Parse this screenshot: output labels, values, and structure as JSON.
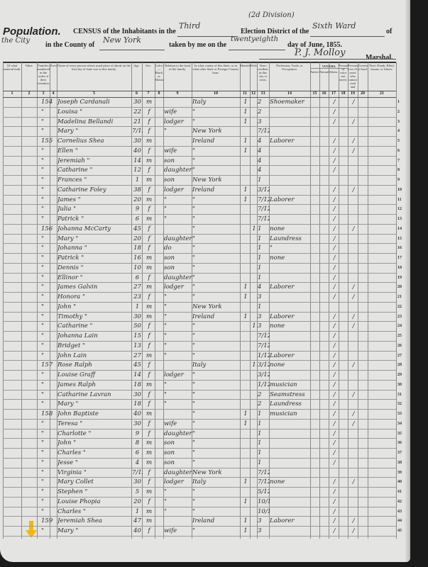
{
  "header": {
    "title": "Population.",
    "census_prefix": "CENSUS of the Inhabitants in the",
    "district_value": "Third",
    "division_note": "(2d Division)",
    "election_district_label": "Election District of the",
    "ward_value": "Sixth Ward",
    "of_label": "of",
    "city_value": "the City",
    "county_label": "in the County of",
    "county_value": "New York",
    "taken_label": "taken by me on the",
    "day_value": "twentyeighth",
    "date_suffix": "day of June, 1855.",
    "marshal_value": "P. J. Molloy",
    "marshal_label": "Marshal."
  },
  "columns": [
    {
      "num": "1",
      "label": "Of what material built."
    },
    {
      "num": "2",
      "label": "Value."
    },
    {
      "num": "3",
      "label": "Families numbered in the order of their visitation."
    },
    {
      "num": "4",
      "label": "Dwellings."
    },
    {
      "num": "5",
      "label": "Name of every person whose usual place of abode on the first day of June was in this family."
    },
    {
      "num": "6",
      "label": "Age."
    },
    {
      "num": "7",
      "label": "Sex."
    },
    {
      "num": "8",
      "label": "Color—Black or Mulatto."
    },
    {
      "num": "9",
      "label": "Relation to the head of the family."
    },
    {
      "num": "10",
      "label": "In what county of this State, or in what other State or Foreign Country born."
    },
    {
      "num": "11",
      "label": "Married."
    },
    {
      "num": "12",
      "label": "Widowed."
    },
    {
      "num": "13",
      "label": "Years resident in this city or town."
    },
    {
      "num": "14",
      "label": "Profession, Trade, or Occupation."
    },
    {
      "num": "15",
      "label": "Native."
    },
    {
      "num": "16",
      "label": "Naturalized."
    },
    {
      "num": "17",
      "label": "Aliens."
    },
    {
      "num": "18",
      "label": "Persons of color not taxed."
    },
    {
      "num": "19",
      "label": "Persons over 21 years who cannot read and write."
    },
    {
      "num": "20",
      "label": "Owners of land."
    },
    {
      "num": "21",
      "label": "Deaf, Dumb, Blind, Insane, or Idiotic."
    }
  ],
  "voters_label": "VOTERS.",
  "rows": [
    {
      "dw": "154",
      "name": "Joseph Cardanali",
      "age": "30",
      "sex": "m",
      "rel": "",
      "born": "Italy",
      "mar": "1",
      "wid": "",
      "yrs": "2",
      "occ": "Shoemaker",
      "c17": "/",
      "c19": "/"
    },
    {
      "dw": "\"",
      "name": "Louisa  \"",
      "age": "22",
      "sex": "f",
      "rel": "wife",
      "born": "\"",
      "mar": "1",
      "wid": "",
      "yrs": "2",
      "occ": "",
      "c17": "/",
      "c19": ""
    },
    {
      "dw": "\"",
      "name": "Madelina Bellandi",
      "age": "21",
      "sex": "f",
      "rel": "lodger",
      "born": "\"",
      "mar": "1",
      "wid": "",
      "yrs": "3",
      "occ": "",
      "c17": "/",
      "c19": "/"
    },
    {
      "dw": "\"",
      "name": "Mary  \"",
      "age": "7/12",
      "sex": "f",
      "rel": "\"",
      "born": "New York",
      "mar": "",
      "wid": "",
      "yrs": "7/12",
      "occ": "",
      "c17": "",
      "c19": ""
    },
    {
      "dw": "155",
      "name": "Cornelius Shea",
      "age": "30",
      "sex": "m",
      "rel": "",
      "born": "Ireland",
      "mar": "1",
      "wid": "",
      "yrs": "4",
      "occ": "Laborer",
      "c17": "/",
      "c19": "/"
    },
    {
      "dw": "\"",
      "name": "Ellen  \"",
      "age": "40",
      "sex": "f",
      "rel": "wife",
      "born": "\"",
      "mar": "1",
      "wid": "",
      "yrs": "4",
      "occ": "",
      "c17": "/",
      "c19": "/"
    },
    {
      "dw": "\"",
      "name": "Jeremiah  \"",
      "age": "14",
      "sex": "m",
      "rel": "son",
      "born": "\"",
      "mar": "",
      "wid": "",
      "yrs": "4",
      "occ": "",
      "c17": "/",
      "c19": ""
    },
    {
      "dw": "\"",
      "name": "Catharine  \"",
      "age": "12",
      "sex": "f",
      "rel": "daughter",
      "born": "\"",
      "mar": "",
      "wid": "",
      "yrs": "4",
      "occ": "",
      "c17": "/",
      "c19": ""
    },
    {
      "dw": "\"",
      "name": "Frances  \"",
      "age": "1",
      "sex": "m",
      "rel": "son",
      "born": "New York",
      "mar": "",
      "wid": "",
      "yrs": "1",
      "occ": "",
      "c17": "",
      "c19": ""
    },
    {
      "dw": "\"",
      "name": "Catharine Foley",
      "age": "38",
      "sex": "f",
      "rel": "lodger",
      "born": "Ireland",
      "mar": "1",
      "wid": "",
      "yrs": "3/12",
      "occ": "",
      "c17": "/",
      "c19": "/"
    },
    {
      "dw": "\"",
      "name": "James  \"",
      "age": "20",
      "sex": "m",
      "rel": "\"",
      "born": "\"",
      "mar": "1",
      "wid": "",
      "yrs": "7/12",
      "occ": "Laborer",
      "c17": "/",
      "c19": ""
    },
    {
      "dw": "\"",
      "name": "Julia  \"",
      "age": "9",
      "sex": "f",
      "rel": "\"",
      "born": "\"",
      "mar": "",
      "wid": "",
      "yrs": "7/12",
      "occ": "",
      "c17": "/",
      "c19": ""
    },
    {
      "dw": "\"",
      "name": "Patrick  \"",
      "age": "6",
      "sex": "m",
      "rel": "\"",
      "born": "\"",
      "mar": "",
      "wid": "",
      "yrs": "7/12",
      "occ": "",
      "c17": "/",
      "c19": ""
    },
    {
      "dw": "156",
      "name": "Johanna McCarty",
      "age": "45",
      "sex": "f",
      "rel": "",
      "born": "\"",
      "mar": "",
      "wid": "1",
      "yrs": "1",
      "occ": "none",
      "c17": "/",
      "c19": "/"
    },
    {
      "dw": "\"",
      "name": "Mary  \"",
      "age": "20",
      "sex": "f",
      "rel": "daughter",
      "born": "\"",
      "mar": "",
      "wid": "",
      "yrs": "1",
      "occ": "Laundress",
      "c17": "/",
      "c19": ""
    },
    {
      "dw": "\"",
      "name": "Johanna  \"",
      "age": "18",
      "sex": "f",
      "rel": "do",
      "born": "\"",
      "mar": "",
      "wid": "",
      "yrs": "1",
      "occ": "\"",
      "c17": "/",
      "c19": ""
    },
    {
      "dw": "\"",
      "name": "Patrick  \"",
      "age": "16",
      "sex": "m",
      "rel": "son",
      "born": "\"",
      "mar": "",
      "wid": "",
      "yrs": "1",
      "occ": "none",
      "c17": "/",
      "c19": ""
    },
    {
      "dw": "\"",
      "name": "Dennis  \"",
      "age": "10",
      "sex": "m",
      "rel": "son",
      "born": "\"",
      "mar": "",
      "wid": "",
      "yrs": "1",
      "occ": "",
      "c17": "/",
      "c19": ""
    },
    {
      "dw": "\"",
      "name": "Ellinor  \"",
      "age": "6",
      "sex": "f",
      "rel": "daughter",
      "born": "\"",
      "mar": "",
      "wid": "",
      "yrs": "1",
      "occ": "",
      "c17": "/",
      "c19": ""
    },
    {
      "dw": "\"",
      "name": "James Galvin",
      "age": "27",
      "sex": "m",
      "rel": "lodger",
      "born": "\"",
      "mar": "1",
      "wid": "",
      "yrs": "4",
      "occ": "Laborer",
      "c17": "/",
      "c19": "/"
    },
    {
      "dw": "\"",
      "name": "Honora  \"",
      "age": "23",
      "sex": "f",
      "rel": "\"",
      "born": "\"",
      "mar": "1",
      "wid": "",
      "yrs": "3",
      "occ": "",
      "c17": "/",
      "c19": "/"
    },
    {
      "dw": "\"",
      "name": "John  \"",
      "age": "1",
      "sex": "m",
      "rel": "\"",
      "born": "New York",
      "mar": "",
      "wid": "",
      "yrs": "1",
      "occ": "",
      "c17": "",
      "c19": ""
    },
    {
      "dw": "\"",
      "name": "Timothy  \"",
      "age": "30",
      "sex": "m",
      "rel": "\"",
      "born": "Ireland",
      "mar": "1",
      "wid": "",
      "yrs": "3",
      "occ": "Laborer",
      "c17": "/",
      "c19": "/"
    },
    {
      "dw": "\"",
      "name": "Catharine  \"",
      "age": "50",
      "sex": "f",
      "rel": "\"",
      "born": "\"",
      "mar": "",
      "wid": "1",
      "yrs": "3",
      "occ": "none",
      "c17": "/",
      "c19": "/"
    },
    {
      "dw": "\"",
      "name": "Johanna Lain",
      "age": "15",
      "sex": "f",
      "rel": "\"",
      "born": "\"",
      "mar": "",
      "wid": "",
      "yrs": "7/12",
      "occ": "",
      "c17": "/",
      "c19": ""
    },
    {
      "dw": "\"",
      "name": "Bridget  \"",
      "age": "13",
      "sex": "f",
      "rel": "\"",
      "born": "\"",
      "mar": "",
      "wid": "",
      "yrs": "7/12",
      "occ": "",
      "c17": "/",
      "c19": ""
    },
    {
      "dw": "\"",
      "name": "John Lain",
      "age": "27",
      "sex": "m",
      "rel": "\"",
      "born": "\"",
      "mar": "",
      "wid": "",
      "yrs": "1/12",
      "occ": "Laborer",
      "c17": "/",
      "c19": ""
    },
    {
      "dw": "157",
      "name": "Rose Ralph",
      "age": "45",
      "sex": "f",
      "rel": "",
      "born": "Italy",
      "mar": "",
      "wid": "1",
      "yrs": "3/12",
      "occ": "none",
      "c17": "/",
      "c19": "/"
    },
    {
      "dw": "\"",
      "name": "Louise Graff",
      "age": "14",
      "sex": "f",
      "rel": "lodger",
      "born": "\"",
      "mar": "",
      "wid": "",
      "yrs": "3/12",
      "occ": "",
      "c17": "/",
      "c19": ""
    },
    {
      "dw": "\"",
      "name": "James Ralph",
      "age": "18",
      "sex": "m",
      "rel": "\"",
      "born": "\"",
      "mar": "",
      "wid": "",
      "yrs": "1/12",
      "occ": "musician",
      "c17": "/",
      "c19": ""
    },
    {
      "dw": "\"",
      "name": "Catharine Lavran",
      "age": "30",
      "sex": "f",
      "rel": "\"",
      "born": "\"",
      "mar": "",
      "wid": "",
      "yrs": "2",
      "occ": "Seamstress",
      "c17": "/",
      "c19": "/"
    },
    {
      "dw": "\"",
      "name": "Mary  \"",
      "age": "18",
      "sex": "f",
      "rel": "\"",
      "born": "\"",
      "mar": "",
      "wid": "",
      "yrs": "2",
      "occ": "Laundress",
      "c17": "/",
      "c19": ""
    },
    {
      "dw": "158",
      "name": "John Baptiste",
      "age": "40",
      "sex": "m",
      "rel": "",
      "born": "\"",
      "mar": "1",
      "wid": "",
      "yrs": "1",
      "occ": "musician",
      "c17": "/",
      "c19": "/"
    },
    {
      "dw": "\"",
      "name": "Teresa  \"",
      "age": "30",
      "sex": "f",
      "rel": "wife",
      "born": "\"",
      "mar": "1",
      "wid": "",
      "yrs": "1",
      "occ": "",
      "c17": "/",
      "c19": "/"
    },
    {
      "dw": "\"",
      "name": "Charlotte  \"",
      "age": "9",
      "sex": "f",
      "rel": "daughter",
      "born": "\"",
      "mar": "",
      "wid": "",
      "yrs": "1",
      "occ": "",
      "c17": "/",
      "c19": ""
    },
    {
      "dw": "\"",
      "name": "John  \"",
      "age": "8",
      "sex": "m",
      "rel": "son",
      "born": "\"",
      "mar": "",
      "wid": "",
      "yrs": "1",
      "occ": "",
      "c17": "/",
      "c19": ""
    },
    {
      "dw": "\"",
      "name": "Charles  \"",
      "age": "6",
      "sex": "m",
      "rel": "son",
      "born": "\"",
      "mar": "",
      "wid": "",
      "yrs": "1",
      "occ": "",
      "c17": "/",
      "c19": ""
    },
    {
      "dw": "\"",
      "name": "Jesse  \"",
      "age": "4",
      "sex": "m",
      "rel": "son",
      "born": "\"",
      "mar": "",
      "wid": "",
      "yrs": "1",
      "occ": "",
      "c17": "/",
      "c19": ""
    },
    {
      "dw": "\"",
      "name": "Virginia  \"",
      "age": "7/12",
      "sex": "f",
      "rel": "daughter",
      "born": "New York",
      "mar": "",
      "wid": "",
      "yrs": "7/12",
      "occ": "",
      "c17": "",
      "c19": ""
    },
    {
      "dw": "\"",
      "name": "Mary Collet",
      "age": "30",
      "sex": "f",
      "rel": "lodger",
      "born": "Italy",
      "mar": "1",
      "wid": "",
      "yrs": "7/12",
      "occ": "none",
      "c17": "/",
      "c19": "/"
    },
    {
      "dw": "\"",
      "name": "Stephen  \"",
      "age": "5",
      "sex": "m",
      "rel": "\"",
      "born": "\"",
      "mar": "",
      "wid": "",
      "yrs": "5/12",
      "occ": "",
      "c17": "/",
      "c19": ""
    },
    {
      "dw": "\"",
      "name": "Louise Phopia",
      "age": "20",
      "sex": "f",
      "rel": "\"",
      "born": "\"",
      "mar": "1",
      "wid": "",
      "yrs": "10/12",
      "occ": "",
      "c17": "/",
      "c19": ""
    },
    {
      "dw": "\"",
      "name": "Charles  \"",
      "age": "1",
      "sex": "m",
      "rel": "\"",
      "born": "\"",
      "mar": "",
      "wid": "",
      "yrs": "10/12",
      "occ": "",
      "c17": "/",
      "c19": ""
    },
    {
      "dw": "159",
      "name": "Jeremiah Shea",
      "age": "47",
      "sex": "m",
      "rel": "",
      "born": "Ireland",
      "mar": "1",
      "wid": "",
      "yrs": "3",
      "occ": "Laborer",
      "c17": "/",
      "c19": "/"
    },
    {
      "dw": "\"",
      "name": "Mary  \"",
      "age": "40",
      "sex": "f",
      "rel": "wife",
      "born": "\"",
      "mar": "1",
      "wid": "",
      "yrs": "3",
      "occ": "",
      "c17": "/",
      "c19": "/"
    }
  ],
  "marker": {
    "icon": "arrow-down-icon",
    "color": "#f5b800"
  },
  "colors": {
    "paper": "#e4e4e2",
    "ink": "#2a2a2a",
    "background": "#1a1a1a"
  }
}
